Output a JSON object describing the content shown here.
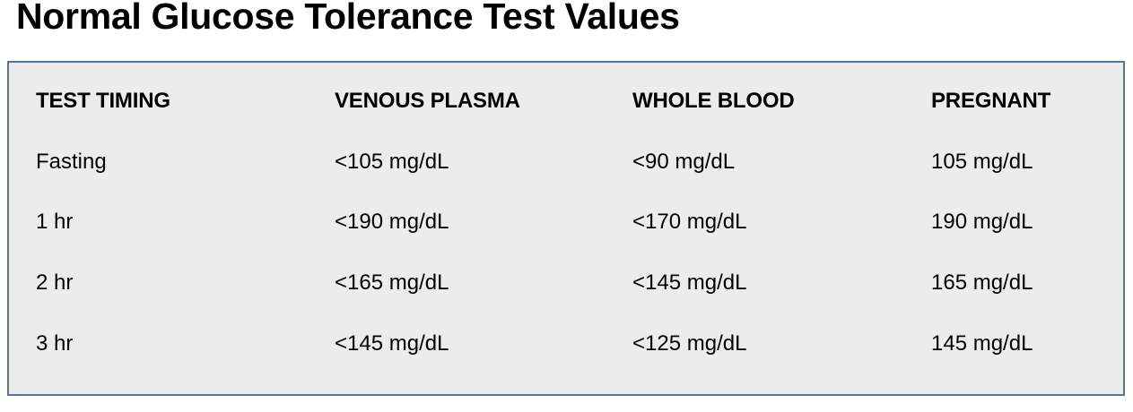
{
  "title": "Normal Glucose Tolerance Test Values",
  "table": {
    "headers": [
      "TEST TIMING",
      "VENOUS PLASMA",
      "WHOLE BLOOD",
      "PREGNANT"
    ],
    "rows": [
      [
        "Fasting",
        "<105 mg/dL",
        "<90 mg/dL",
        "105 mg/dL"
      ],
      [
        "1 hr",
        "<190 mg/dL",
        "<170 mg/dL",
        "190 mg/dL"
      ],
      [
        "2 hr",
        "<165 mg/dL",
        "<145 mg/dL",
        "165 mg/dL"
      ],
      [
        "3 hr",
        "<145 mg/dL",
        "<125 mg/dL",
        "145 mg/dL"
      ]
    ]
  },
  "colors": {
    "table_background": "#ececec",
    "table_border": "#5b7491"
  }
}
